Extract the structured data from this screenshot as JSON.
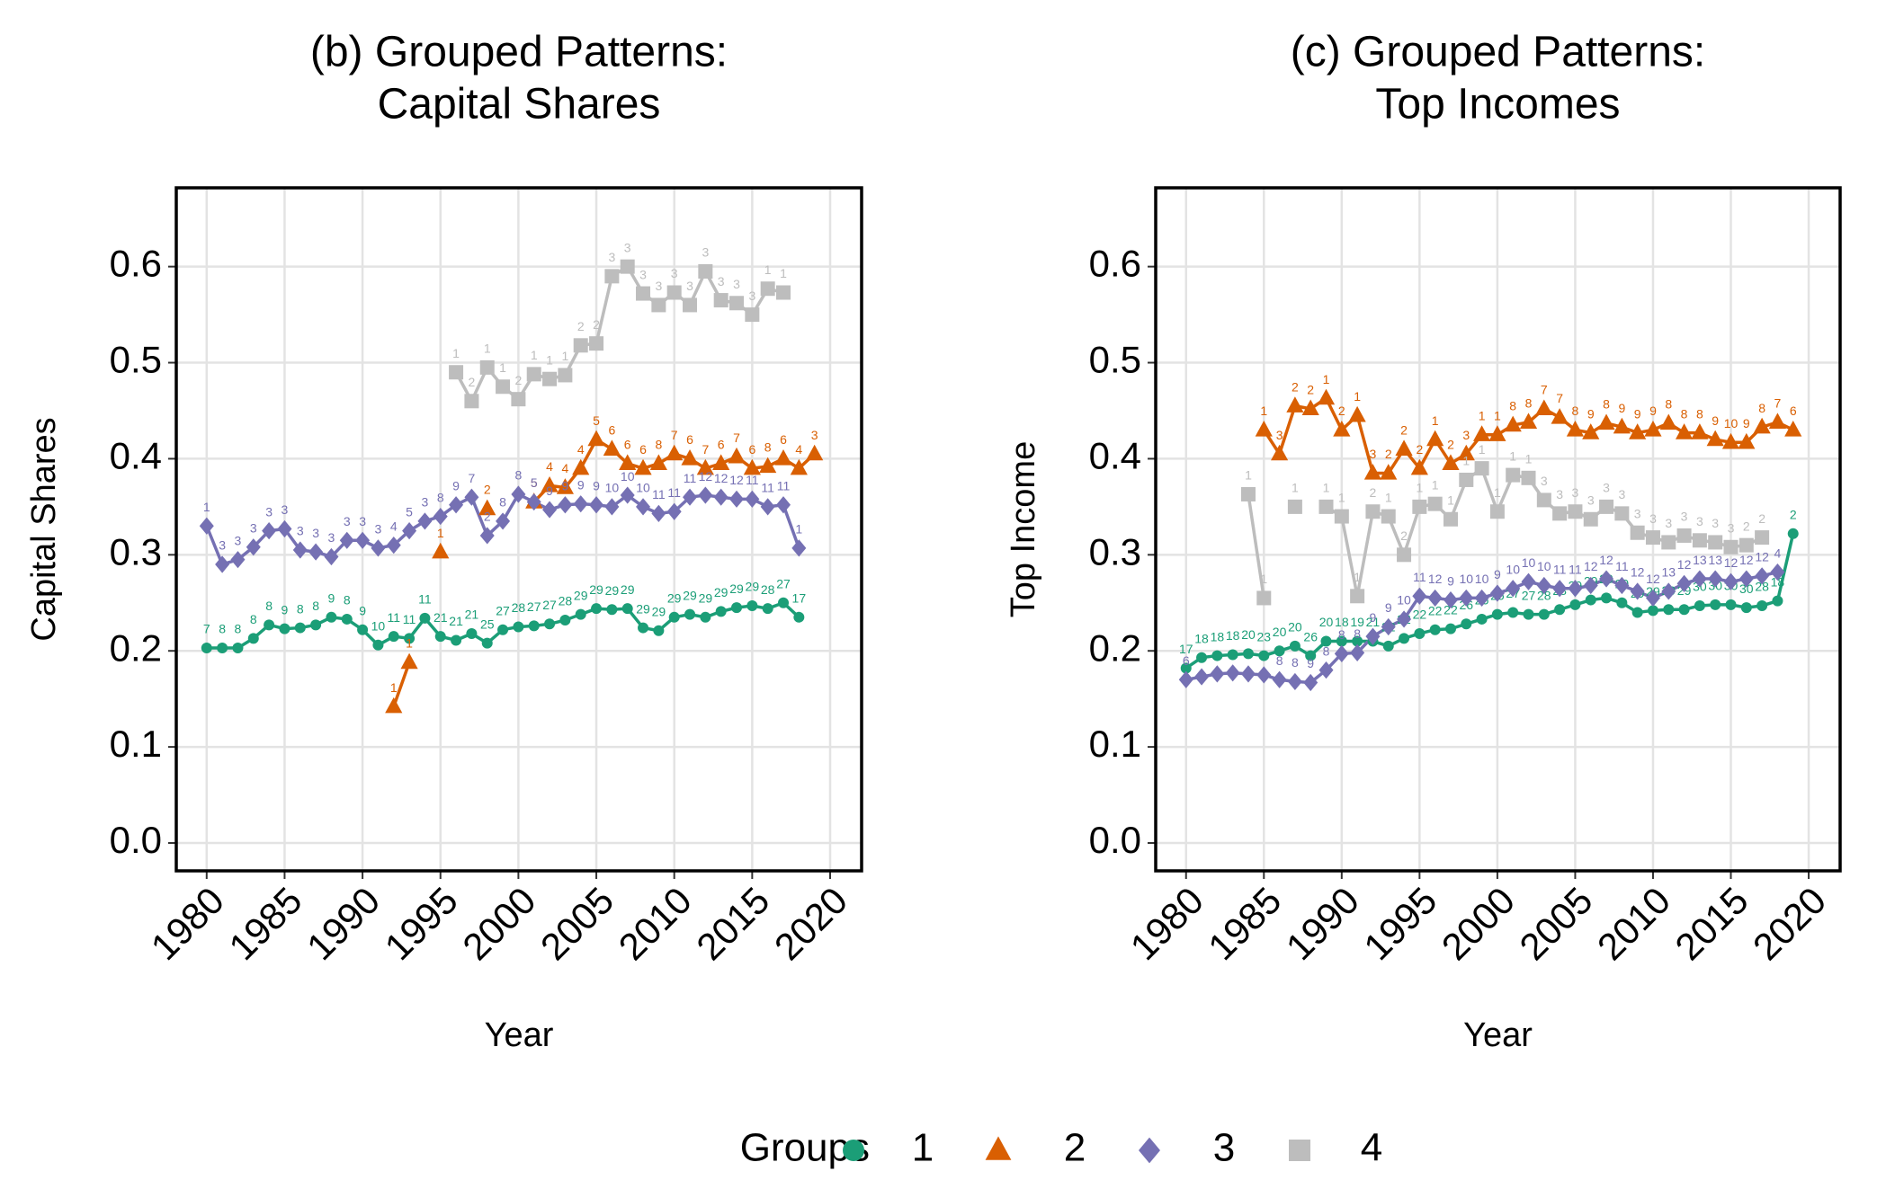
{
  "chart_data": [
    {
      "type": "line",
      "title": [
        "(b) Grouped Patterns:",
        "Capital Shares"
      ],
      "x_label": "Year",
      "y_label": "Capital Shares",
      "x": [
        1980,
        1981,
        1982,
        1983,
        1984,
        1985,
        1986,
        1987,
        1988,
        1989,
        1990,
        1991,
        1992,
        1993,
        1994,
        1995,
        1996,
        1997,
        1998,
        1999,
        2000,
        2001,
        2002,
        2003,
        2004,
        2005,
        2006,
        2007,
        2008,
        2009,
        2010,
        2011,
        2012,
        2013,
        2014,
        2015,
        2016,
        2017,
        2018,
        2019
      ],
      "xlim": [
        1978.05,
        2022.02
      ],
      "xticks": [
        1980,
        1985,
        1990,
        1995,
        2000,
        2005,
        2010,
        2015,
        2020
      ],
      "ylim": [
        -0.029,
        0.682
      ],
      "yticks": [
        {
          "value": 0,
          "label": "0.0"
        },
        0.1,
        0.2,
        0.3,
        0.4,
        0.5,
        0.6
      ],
      "grid": true,
      "series": [
        {
          "name": "1",
          "color": "#1b9e77",
          "marker": "circle",
          "values": [
            0.203,
            0.203,
            0.203,
            0.213,
            0.227,
            0.223,
            0.224,
            0.227,
            0.235,
            0.233,
            0.222,
            0.206,
            0.215,
            0.213,
            0.234,
            0.215,
            0.211,
            0.218,
            0.208,
            0.222,
            0.225,
            0.226,
            0.228,
            0.232,
            0.238,
            0.244,
            0.243,
            0.244,
            0.224,
            0.221,
            0.235,
            0.238,
            0.235,
            0.241,
            0.245,
            0.247,
            0.244,
            0.25,
            0.235,
            null
          ],
          "point_labels": [
            7,
            8,
            8,
            8,
            8,
            9,
            8,
            8,
            9,
            8,
            9,
            10,
            11,
            11,
            11,
            21,
            21,
            21,
            25,
            27,
            28,
            27,
            27,
            28,
            29,
            29,
            29,
            29,
            29,
            29,
            29,
            29,
            29,
            29,
            29,
            29,
            28,
            27,
            17,
            null
          ]
        },
        {
          "name": "2",
          "color": "#d95f02",
          "marker": "triangle",
          "values": [
            null,
            null,
            null,
            null,
            null,
            null,
            null,
            null,
            null,
            null,
            null,
            null,
            0.142,
            0.188,
            null,
            0.303,
            null,
            null,
            0.348,
            null,
            null,
            0.355,
            0.372,
            0.37,
            0.39,
            0.42,
            0.41,
            0.395,
            0.39,
            0.395,
            0.405,
            0.4,
            0.39,
            0.395,
            0.402,
            0.39,
            0.392,
            0.4,
            0.39,
            0.405
          ],
          "point_labels": [
            null,
            null,
            null,
            null,
            null,
            null,
            null,
            null,
            null,
            null,
            null,
            null,
            1,
            1,
            null,
            1,
            null,
            null,
            2,
            null,
            null,
            5,
            4,
            4,
            4,
            5,
            6,
            6,
            6,
            8,
            7,
            6,
            7,
            6,
            7,
            6,
            8,
            6,
            4,
            3
          ]
        },
        {
          "name": "3",
          "color": "#7570b3",
          "marker": "diamond",
          "values": [
            0.33,
            0.29,
            0.295,
            0.308,
            0.325,
            0.327,
            0.305,
            0.303,
            0.298,
            0.315,
            0.315,
            0.307,
            0.31,
            0.325,
            0.335,
            0.34,
            0.352,
            0.36,
            0.32,
            0.335,
            0.363,
            0.355,
            0.347,
            0.352,
            0.353,
            0.352,
            0.35,
            0.362,
            0.35,
            0.343,
            0.345,
            0.36,
            0.362,
            0.36,
            0.358,
            0.358,
            0.35,
            0.352,
            0.307,
            null
          ],
          "point_labels": [
            1,
            3,
            3,
            3,
            3,
            3,
            3,
            3,
            3,
            3,
            3,
            3,
            4,
            5,
            3,
            8,
            9,
            7,
            2,
            8,
            8,
            5,
            9,
            9,
            9,
            9,
            10,
            10,
            10,
            11,
            11,
            11,
            12,
            12,
            12,
            11,
            11,
            11,
            1,
            null
          ]
        },
        {
          "name": "4",
          "color": "#bdbdbd",
          "marker": "square",
          "values": [
            null,
            null,
            null,
            null,
            null,
            null,
            null,
            null,
            null,
            null,
            null,
            null,
            null,
            null,
            null,
            null,
            0.49,
            0.46,
            0.495,
            0.475,
            0.462,
            0.488,
            0.483,
            0.487,
            0.518,
            0.52,
            0.59,
            0.6,
            0.572,
            0.56,
            0.573,
            0.56,
            0.595,
            0.565,
            0.562,
            0.55,
            0.577,
            0.573,
            null,
            null
          ],
          "point_labels": [
            null,
            null,
            null,
            null,
            null,
            null,
            null,
            null,
            null,
            null,
            null,
            null,
            null,
            null,
            null,
            null,
            1,
            2,
            1,
            1,
            2,
            1,
            1,
            1,
            2,
            2,
            3,
            3,
            3,
            3,
            3,
            3,
            3,
            3,
            3,
            3,
            1,
            1,
            null,
            null
          ]
        }
      ]
    },
    {
      "type": "line",
      "title": [
        "(c) Grouped Patterns:",
        "Top Incomes"
      ],
      "x_label": "Year",
      "y_label": "Top Income",
      "x": [
        1980,
        1981,
        1982,
        1983,
        1984,
        1985,
        1986,
        1987,
        1988,
        1989,
        1990,
        1991,
        1992,
        1993,
        1994,
        1995,
        1996,
        1997,
        1998,
        1999,
        2000,
        2001,
        2002,
        2003,
        2004,
        2005,
        2006,
        2007,
        2008,
        2009,
        2010,
        2011,
        2012,
        2013,
        2014,
        2015,
        2016,
        2017,
        2018,
        2019
      ],
      "xlim": [
        1978.05,
        2022.02
      ],
      "xticks": [
        1980,
        1985,
        1990,
        1995,
        2000,
        2005,
        2010,
        2015,
        2020
      ],
      "ylim": [
        -0.029,
        0.682
      ],
      "yticks": [
        {
          "value": 0,
          "label": "0.0"
        },
        0.1,
        0.2,
        0.3,
        0.4,
        0.5,
        0.6
      ],
      "grid": true,
      "series": [
        {
          "name": "1",
          "color": "#1b9e77",
          "marker": "circle",
          "values": [
            0.182,
            0.193,
            0.195,
            0.196,
            0.197,
            0.195,
            0.2,
            0.205,
            0.195,
            0.21,
            0.21,
            0.21,
            0.21,
            0.205,
            0.213,
            0.218,
            0.222,
            0.223,
            0.228,
            0.233,
            0.238,
            0.24,
            0.238,
            0.238,
            0.243,
            0.248,
            0.253,
            0.255,
            0.25,
            0.24,
            0.242,
            0.243,
            0.243,
            0.247,
            0.248,
            0.248,
            0.245,
            0.247,
            0.252,
            0.322
          ],
          "point_labels": [
            17,
            18,
            18,
            18,
            20,
            23,
            20,
            20,
            26,
            20,
            18,
            19,
            21,
            22,
            22,
            22,
            22,
            22,
            26,
            26,
            26,
            27,
            27,
            28,
            28,
            29,
            29,
            29,
            29,
            29,
            29,
            29,
            29,
            30,
            30,
            30,
            30,
            28,
            18,
            2
          ]
        },
        {
          "name": "2",
          "color": "#d95f02",
          "marker": "triangle",
          "values": [
            null,
            null,
            null,
            null,
            null,
            0.43,
            0.405,
            0.455,
            0.452,
            0.463,
            0.43,
            0.445,
            0.385,
            0.385,
            0.41,
            0.39,
            0.42,
            0.395,
            0.405,
            0.425,
            0.425,
            0.435,
            0.438,
            0.452,
            0.443,
            0.43,
            0.427,
            0.437,
            0.433,
            0.427,
            0.43,
            0.437,
            0.427,
            0.427,
            0.42,
            0.417,
            0.417,
            0.433,
            0.438,
            0.43
          ],
          "point_labels": [
            null,
            null,
            null,
            null,
            null,
            1,
            3,
            2,
            2,
            1,
            2,
            1,
            3,
            2,
            2,
            2,
            1,
            2,
            3,
            1,
            1,
            8,
            8,
            7,
            7,
            8,
            9,
            8,
            9,
            9,
            9,
            8,
            8,
            8,
            9,
            10,
            9,
            8,
            7,
            6
          ]
        },
        {
          "name": "3",
          "color": "#7570b3",
          "marker": "diamond",
          "values": [
            0.17,
            0.173,
            0.176,
            0.177,
            0.176,
            0.175,
            0.17,
            0.168,
            0.167,
            0.18,
            0.197,
            0.198,
            0.215,
            0.225,
            0.233,
            0.257,
            0.255,
            0.253,
            0.255,
            0.255,
            0.26,
            0.265,
            0.272,
            0.268,
            0.265,
            0.265,
            0.268,
            0.275,
            0.268,
            0.262,
            0.255,
            0.262,
            0.27,
            0.275,
            0.275,
            0.272,
            0.275,
            0.278,
            0.282,
            null
          ],
          "point_labels": [
            6,
            null,
            null,
            null,
            null,
            null,
            8,
            8,
            9,
            8,
            8,
            8,
            9,
            9,
            10,
            11,
            12,
            9,
            10,
            10,
            9,
            10,
            10,
            10,
            11,
            11,
            12,
            12,
            11,
            12,
            12,
            13,
            12,
            13,
            13,
            12,
            12,
            12,
            4,
            null
          ]
        },
        {
          "name": "4",
          "color": "#bdbdbd",
          "marker": "square",
          "values": [
            null,
            null,
            null,
            null,
            0.363,
            0.255,
            null,
            0.35,
            null,
            0.35,
            0.34,
            0.257,
            0.345,
            0.34,
            0.3,
            0.35,
            0.353,
            0.337,
            0.378,
            0.39,
            0.345,
            0.383,
            0.38,
            0.357,
            0.343,
            0.345,
            0.337,
            0.35,
            0.343,
            0.323,
            0.318,
            0.313,
            0.32,
            0.315,
            0.313,
            0.308,
            0.31,
            0.318,
            null,
            null
          ],
          "point_labels": [
            null,
            null,
            null,
            null,
            1,
            1,
            null,
            1,
            null,
            1,
            1,
            1,
            2,
            1,
            2,
            1,
            1,
            1,
            1,
            1,
            1,
            1,
            1,
            3,
            3,
            3,
            3,
            3,
            3,
            3,
            3,
            3,
            3,
            3,
            3,
            3,
            2,
            2,
            null,
            null
          ]
        }
      ]
    }
  ],
  "legend": {
    "title": "Groups"
  }
}
